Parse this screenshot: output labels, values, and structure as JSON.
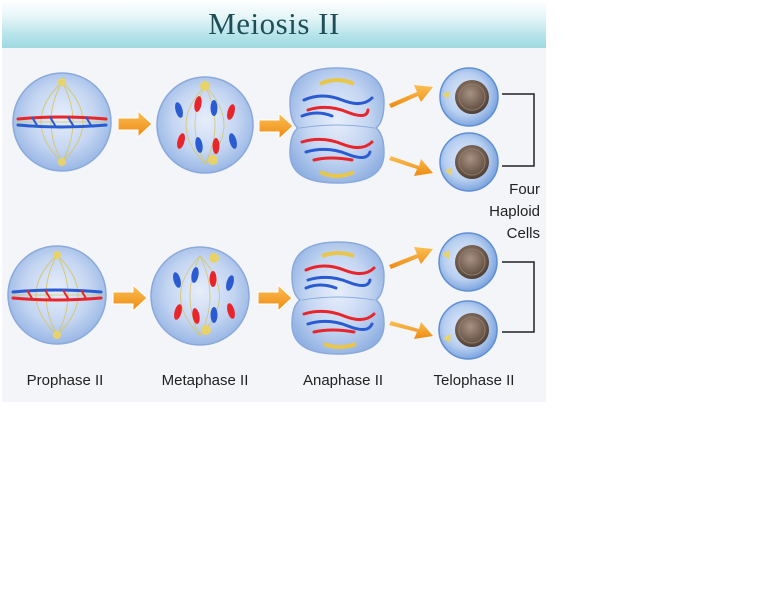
{
  "title": "Meiosis II",
  "stages": [
    {
      "label": "Prophase II"
    },
    {
      "label": "Metaphase II"
    },
    {
      "label": "Anaphase II"
    },
    {
      "label": "Telophase II"
    }
  ],
  "result_label": [
    "Four",
    "Haploid",
    "Cells"
  ],
  "colors": {
    "cell_fill": "#aac6ea",
    "chromosome_red": "#e8252b",
    "chromosome_blue": "#2b5bd0",
    "arrow": "#f39c1d",
    "nucleus": "#7d6a5c"
  }
}
